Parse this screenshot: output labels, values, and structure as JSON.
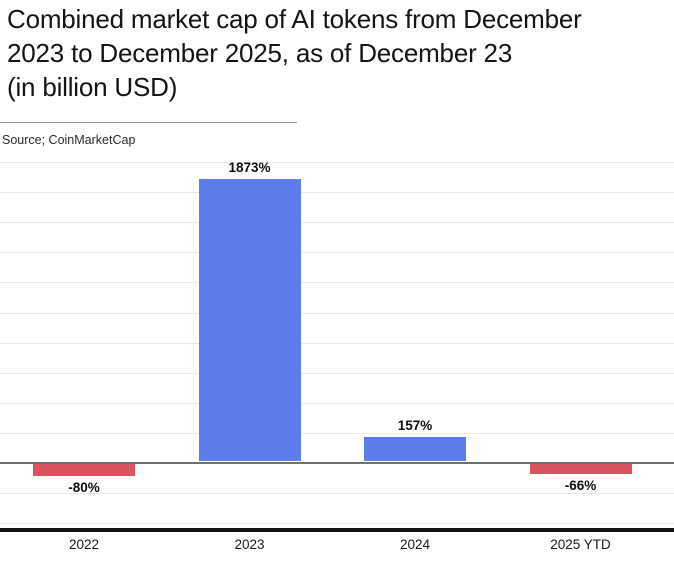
{
  "title": {
    "lines": [
      "Combined market cap of AI tokens from December",
      "2023 to December 2025, as of December 23",
      "(in billion USD)"
    ]
  },
  "source": {
    "label": "Source; CoinMarketCap"
  },
  "chart_data": {
    "type": "bar",
    "title": "Combined market cap of AI tokens from December 2023 to December 2025, as of December 23 (in billion USD)",
    "categories": [
      "2022",
      "2023",
      "2024",
      "2025 YTD"
    ],
    "values": [
      -80,
      1873,
      157,
      -66
    ],
    "value_labels": [
      "-80%",
      "1873%",
      "157%",
      "-66%"
    ],
    "unit": "%",
    "xlabel": "",
    "ylabel": "",
    "ylim": [
      -400,
      2000
    ],
    "gridline_step": 200,
    "grid": "horizontal",
    "y_axis_tick_labels_visible": false,
    "legend": "none",
    "positive_color": "#5c7de9",
    "negative_color": "#d9545f",
    "grid_color": "#eaeaea",
    "zero_axis_color": "#6f6f6f",
    "bottom_border_color": "#0f0f0f",
    "label_color": "#0d0d0d"
  }
}
